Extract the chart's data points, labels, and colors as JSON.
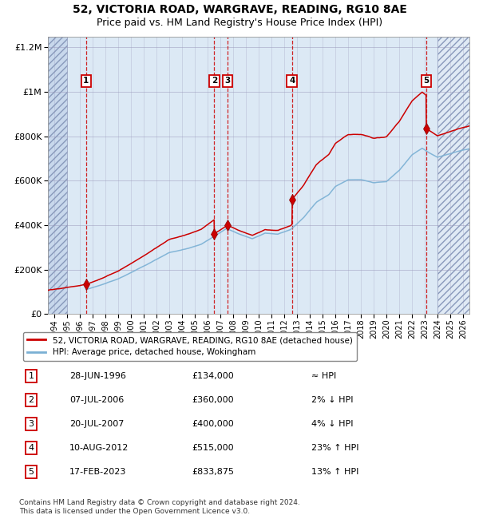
{
  "title": "52, VICTORIA ROAD, WARGRAVE, READING, RG10 8AE",
  "subtitle": "Price paid vs. HM Land Registry's House Price Index (HPI)",
  "legend_label_red": "52, VICTORIA ROAD, WARGRAVE, READING, RG10 8AE (detached house)",
  "legend_label_blue": "HPI: Average price, detached house, Wokingham",
  "footnote": "Contains HM Land Registry data © Crown copyright and database right 2024.\nThis data is licensed under the Open Government Licence v3.0.",
  "sale_dates_str": [
    "28-JUN-1996",
    "07-JUL-2006",
    "20-JUL-2007",
    "10-AUG-2012",
    "17-FEB-2023"
  ],
  "sale_prices": [
    134000,
    360000,
    400000,
    515000,
    833875
  ],
  "sale_hpi_rel": [
    "≈ HPI",
    "2% ↓ HPI",
    "4% ↓ HPI",
    "23% ↑ HPI",
    "13% ↑ HPI"
  ],
  "sale_years": [
    1996.49,
    2006.52,
    2007.55,
    2012.61,
    2023.12
  ],
  "ylim": [
    0,
    1250000
  ],
  "xlim_start": 1993.5,
  "xlim_end": 2026.5,
  "hatch_left_end": 1995.0,
  "future_start": 2024.0,
  "bg_color_main": "#dce9f5",
  "bg_color_hatch": "#c8d8ec",
  "red_color": "#cc0000",
  "blue_color": "#7ab0d4",
  "grid_color": "#9999bb",
  "title_fontsize": 10,
  "subtitle_fontsize": 9,
  "tick_label_years": [
    1994,
    1995,
    1996,
    1997,
    1998,
    1999,
    2000,
    2001,
    2002,
    2003,
    2004,
    2005,
    2006,
    2007,
    2008,
    2009,
    2010,
    2011,
    2012,
    2013,
    2014,
    2015,
    2016,
    2017,
    2018,
    2019,
    2020,
    2021,
    2022,
    2023,
    2024,
    2025,
    2026
  ],
  "table_data": [
    [
      "1",
      "28-JUN-1996",
      "£134,000",
      "≈ HPI"
    ],
    [
      "2",
      "07-JUL-2006",
      "£360,000",
      "2% ↓ HPI"
    ],
    [
      "3",
      "20-JUL-2007",
      "£400,000",
      "4% ↓ HPI"
    ],
    [
      "4",
      "10-AUG-2012",
      "£515,000",
      "23% ↑ HPI"
    ],
    [
      "5",
      "17-FEB-2023",
      "£833,875",
      "13% ↑ HPI"
    ]
  ]
}
